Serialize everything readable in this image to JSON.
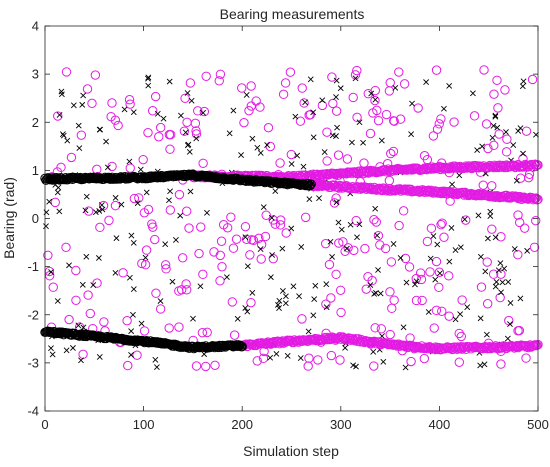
{
  "chart_data": {
    "type": "scatter",
    "title": "Bearing measurements",
    "xlabel": "Simulation step",
    "ylabel": "Bearing (rad)",
    "xlim": [
      0,
      500
    ],
    "ylim": [
      -4,
      4
    ],
    "xticks": [
      "0",
      "100",
      "200",
      "300",
      "400",
      "500"
    ],
    "yticks": [
      "-4",
      "-3",
      "-2",
      "-1",
      "0",
      "1",
      "2",
      "3",
      "4"
    ],
    "grid": false,
    "legend": "none",
    "series": [
      {
        "marker": "x",
        "color": "#000000",
        "description": "black x markers",
        "tracks": [
          {
            "x": [
              0,
              100,
              150,
              200,
              250,
              270
            ],
            "y": [
              0.82,
              0.85,
              0.9,
              0.8,
              0.72,
              0.7
            ]
          },
          {
            "x": [
              0,
              100,
              150,
              200
            ],
            "y": [
              -2.35,
              -2.55,
              -2.68,
              -2.64
            ]
          }
        ],
        "clutter": "uniform scattered detections over the full step range between about -3.1 and 3.1 rad"
      },
      {
        "marker": "o",
        "color": "#e31be3",
        "description": "magenta circle markers",
        "tracks": [
          {
            "x": [
              150,
              200,
              250,
              300,
              350,
              400,
              450,
              500
            ],
            "y": [
              0.88,
              0.87,
              0.86,
              0.93,
              1.0,
              1.05,
              1.08,
              1.1
            ]
          },
          {
            "x": [
              270,
              300,
              350,
              400,
              450,
              500
            ],
            "y": [
              0.69,
              0.66,
              0.6,
              0.55,
              0.48,
              0.4
            ]
          },
          {
            "x": [
              200,
              250,
              300,
              350,
              400,
              450,
              500
            ],
            "y": [
              -2.64,
              -2.55,
              -2.48,
              -2.62,
              -2.7,
              -2.68,
              -2.65
            ]
          }
        ],
        "clutter": "uniform scattered detections over the full step range between about -3.1 and 3.1 rad"
      }
    ]
  }
}
